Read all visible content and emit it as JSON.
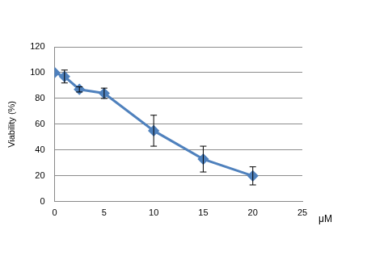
{
  "chart_data": {
    "type": "line",
    "x": [
      0,
      1,
      2.5,
      5,
      10,
      15,
      20
    ],
    "values": [
      100,
      97,
      87,
      84,
      55,
      33,
      20
    ],
    "errors": [
      0,
      5,
      2,
      4,
      12,
      10,
      7
    ],
    "color": "#4f81bd",
    "marker": "diamond",
    "x_label": "μM",
    "y_label": "Viability (%)",
    "xlim": [
      0,
      25
    ],
    "xticks": [
      0,
      5,
      10,
      15,
      20,
      25
    ],
    "ylim": [
      0,
      120
    ],
    "yticks": [
      0,
      20,
      40,
      60,
      80,
      100,
      120
    ],
    "grid": true
  }
}
